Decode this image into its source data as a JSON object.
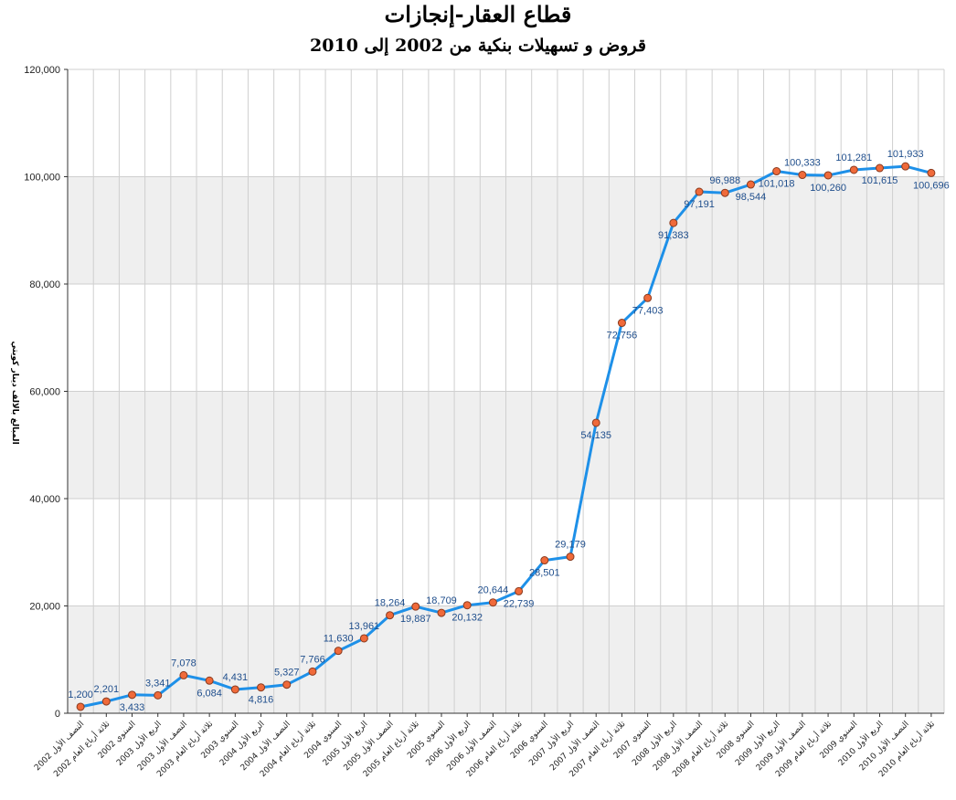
{
  "chart_data": {
    "type": "line",
    "title": "قطاع العقار-إنجازات",
    "subtitle": "قروض و تسهيلات بنكية من 2002 إلى 2010",
    "ylabel": "المبالغ بالالف دينار كويتي",
    "xlabel": "",
    "ylim": [
      0,
      120000
    ],
    "yticks": [
      "0",
      "20,000",
      "40,000",
      "60,000",
      "80,000",
      "100,000",
      "120,000"
    ],
    "yticks_values": [
      0,
      20000,
      40000,
      60000,
      80000,
      100000,
      120000
    ],
    "grid": true,
    "line_color": "#1e90e8",
    "marker_color": "#f06a3a",
    "band_color": "#efefef",
    "categories": [
      "النصف الأول 2002",
      "ثلاثة أرباع العام 2002",
      "السنوي 2002",
      "الربع الأول 2003",
      "النصف الأول 2003",
      "ثلاثة أرباع العام 2003",
      "السنوي 2003",
      "الربع الأول 2004",
      "النصف الأول 2004",
      "ثلاثة أرباع العام 2004",
      "السنوي 2004",
      "الربع الأول 2005",
      "النصف الأول 2005",
      "ثلاثة أرباع العام 2005",
      "السنوي 2005",
      "الربع الأول 2006",
      "النصف الأول 2006",
      "ثلاثة أرباع العام 2006",
      "السنوي 2006",
      "الربع الأول 2007",
      "النصف الأول 2007",
      "ثلاثة أرباع العام 2007",
      "السنوي 2007",
      "الربع الأول 2008",
      "النصف الأول 2008",
      "ثلاثة أرباع العام 2008",
      "السنوي 2008",
      "الربع الأول 2009",
      "النصف الأول 2009",
      "ثلاثة أرباع العام 2009",
      "السنوي 2009",
      "الربع الأول 2010",
      "النصف الأول 2010",
      "ثلاثة أرباع العام 2010"
    ],
    "values": [
      1200,
      2201,
      3433,
      3341,
      7078,
      6084,
      4431,
      4816,
      5327,
      7766,
      11630,
      13961,
      18264,
      19887,
      18709,
      20132,
      20644,
      22739,
      28501,
      29179,
      54135,
      72756,
      77403,
      91383,
      97191,
      96988,
      98544,
      101018,
      100333,
      100260,
      101281,
      101615,
      101933,
      100696
    ],
    "value_labels": [
      "1,200",
      "2,201",
      "3,433",
      "3,341",
      "7,078",
      "6,084",
      "4,431",
      "4,816",
      "5,327",
      "7,766",
      "11,630",
      "13,961",
      "18,264",
      "19,887",
      "18,709",
      "20,132",
      "20,644",
      "22,739",
      "28,501",
      "29,179",
      "54,135",
      "72,756",
      "77,403",
      "91,383",
      "97,191",
      "96,988",
      "98,544",
      "101,018",
      "100,333",
      "100,260",
      "101,281",
      "101,615",
      "101,933",
      "100,696"
    ],
    "label_positions": [
      "above",
      "above",
      "below",
      "above",
      "above",
      "below",
      "above",
      "below",
      "above",
      "above",
      "above",
      "above",
      "above",
      "below",
      "above",
      "below",
      "above",
      "below",
      "below",
      "above",
      "below",
      "below",
      "below",
      "below",
      "below",
      "above",
      "below",
      "below",
      "above",
      "below",
      "above",
      "below",
      "above",
      "below"
    ]
  }
}
